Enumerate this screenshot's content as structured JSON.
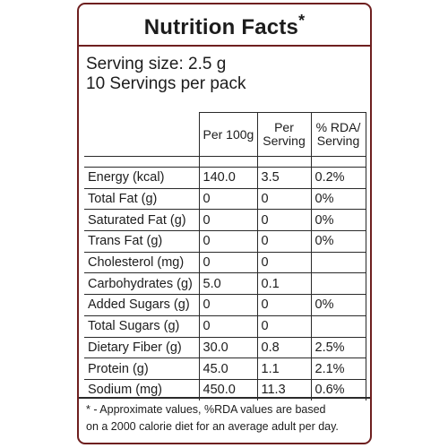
{
  "label": {
    "title": "Nutrition Facts",
    "title_mark": "*",
    "serving_size": "Serving size: 2.5 g",
    "servings_per_pack": "10 Servings per pack"
  },
  "table": {
    "headers": [
      "Per 100g",
      "Per Serving",
      "% RDA/ Serving"
    ],
    "rows": [
      {
        "name": "Energy (kcal)",
        "per_100g": "140.0",
        "per_serving": "3.5",
        "rda": "0.2%"
      },
      {
        "name": "Total Fat (g)",
        "per_100g": "0",
        "per_serving": "0",
        "rda": "0%"
      },
      {
        "name": "Saturated Fat (g)",
        "per_100g": "0",
        "per_serving": "0",
        "rda": "0%"
      },
      {
        "name": "Trans Fat (g)",
        "per_100g": "0",
        "per_serving": "0",
        "rda": "0%"
      },
      {
        "name": "Cholesterol (mg)",
        "per_100g": "0",
        "per_serving": "0",
        "rda": ""
      },
      {
        "name": "Carbohydrates (g)",
        "per_100g": "5.0",
        "per_serving": "0.1",
        "rda": ""
      },
      {
        "name": "Added Sugars (g)",
        "per_100g": "0",
        "per_serving": "0",
        "rda": "0%"
      },
      {
        "name": "Total Sugars (g)",
        "per_100g": "0",
        "per_serving": "0",
        "rda": ""
      },
      {
        "name": "Dietary Fiber (g)",
        "per_100g": "30.0",
        "per_serving": "0.8",
        "rda": "2.5%"
      },
      {
        "name": "Protein (g)",
        "per_100g": "45.0",
        "per_serving": "1.1",
        "rda": "2.1%"
      },
      {
        "name": "Sodium (mg)",
        "per_100g": "450.0",
        "per_serving": "11.3",
        "rda": "0.6%"
      }
    ]
  },
  "footnote": {
    "line1": "* - Approximate values, %RDA values are based",
    "line2": "on a 2000 calorie diet for an average adult per day."
  },
  "colors": {
    "border": "#6e1f1f",
    "text": "#1c1c1c",
    "grid": "#2a2a2a"
  }
}
